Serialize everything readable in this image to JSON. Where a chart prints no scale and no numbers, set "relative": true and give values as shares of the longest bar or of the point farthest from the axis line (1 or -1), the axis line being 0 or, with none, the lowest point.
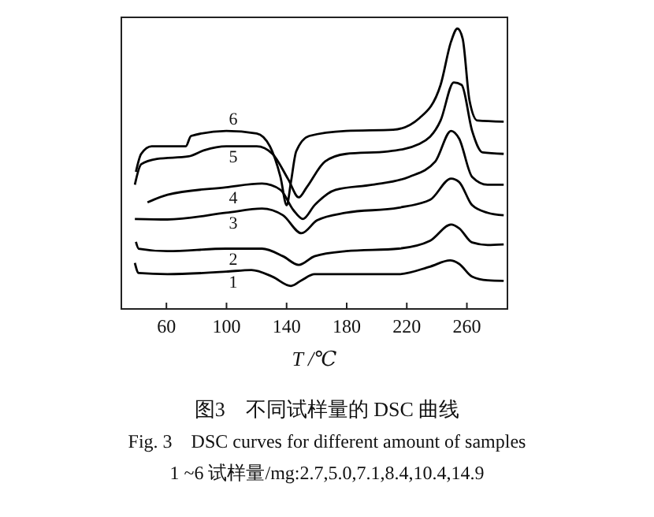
{
  "chart_data": {
    "type": "line",
    "relative": true,
    "title": "图3　不同试样量的 DSC 曲线",
    "subtitle": "Fig. 3　DSC curves for different amount of samples",
    "annotations": [
      "1 ~6 试样量/mg:2.7,5.0,7.1,8.4,10.4,14.9"
    ],
    "xlabel": "T /℃",
    "xlim": [
      30,
      287
    ],
    "xticks": [
      60,
      100,
      140,
      180,
      220,
      260
    ],
    "grid": false,
    "marker": "none",
    "line_style": "solid",
    "series": [
      {
        "name": "1",
        "color": "#000000",
        "x": [
          39,
          41.5,
          60.7,
          99.9,
          116.6,
          130.6,
          142.9,
          149.9,
          158.6,
          179.6,
          214.5,
          235.5,
          248.8,
          254.8,
          263.5,
          273.8,
          284.5
        ],
        "values": [
          0.164,
          0.128,
          0.124,
          0.133,
          0.139,
          0.115,
          0.082,
          0.102,
          0.124,
          0.124,
          0.124,
          0.151,
          0.173,
          0.161,
          0.115,
          0.102,
          0.1
        ]
      },
      {
        "name": "2",
        "color": "#000000",
        "x": [
          39.7,
          41.5,
          60.7,
          99.9,
          123.6,
          137.6,
          148.1,
          158.6,
          179.6,
          214.5,
          235.5,
          249.5,
          254.8,
          263.5,
          273.8,
          284.5
        ],
        "values": [
          0.239,
          0.215,
          0.206,
          0.215,
          0.215,
          0.188,
          0.157,
          0.188,
          0.206,
          0.215,
          0.243,
          0.301,
          0.288,
          0.237,
          0.228,
          0.23
        ]
      },
      {
        "name": "3",
        "color": "#000000",
        "x": [
          39,
          60.7,
          99.9,
          123.6,
          137.6,
          149.9,
          160.3,
          179.6,
          214.5,
          235.5,
          249.5,
          254.8,
          263.5,
          273.8,
          284.5
        ],
        "values": [
          0.321,
          0.319,
          0.343,
          0.358,
          0.334,
          0.27,
          0.316,
          0.343,
          0.361,
          0.389,
          0.465,
          0.453,
          0.37,
          0.343,
          0.334
        ]
      },
      {
        "name": "4",
        "color": "#000000",
        "x": [
          47.4,
          60.7,
          99.9,
          123.6,
          135.9,
          144.6,
          150.9,
          158.6,
          172.6,
          197.1,
          221.5,
          239,
          249.5,
          254.8,
          263.5,
          273.8,
          284.5
        ],
        "values": [
          0.38,
          0.407,
          0.434,
          0.447,
          0.425,
          0.352,
          0.321,
          0.37,
          0.425,
          0.443,
          0.471,
          0.526,
          0.635,
          0.608,
          0.471,
          0.443,
          0.443
        ]
      },
      {
        "name": "5",
        "color": "#000000",
        "x": [
          39,
          43.2,
          53.7,
          74.7,
          85.2,
          99.9,
          120.1,
          130.6,
          141.1,
          148.1,
          153.4,
          165.6,
          179.6,
          207.6,
          228.5,
          242.5,
          251.3,
          256.5,
          263.5,
          270.5,
          284.5
        ],
        "values": [
          0.443,
          0.516,
          0.535,
          0.544,
          0.566,
          0.58,
          0.58,
          0.553,
          0.462,
          0.398,
          0.434,
          0.526,
          0.553,
          0.562,
          0.589,
          0.672,
          0.808,
          0.799,
          0.635,
          0.558,
          0.553
        ]
      },
      {
        "name": "6",
        "color": "#000000",
        "x": [
          39.7,
          43.2,
          50.2,
          72.9,
          76.4,
          99.9,
          120.1,
          128.9,
          135.9,
          140.1,
          142.9,
          146.4,
          155.1,
          179.6,
          211,
          228.5,
          242.5,
          249.5,
          253.7,
          257.2,
          261.7,
          267,
          284.5
        ],
        "values": [
          0.489,
          0.553,
          0.58,
          0.58,
          0.617,
          0.635,
          0.626,
          0.58,
          0.471,
          0.37,
          0.453,
          0.562,
          0.617,
          0.635,
          0.639,
          0.681,
          0.799,
          0.954,
          1,
          0.964,
          0.745,
          0.672,
          0.668
        ]
      }
    ]
  }
}
